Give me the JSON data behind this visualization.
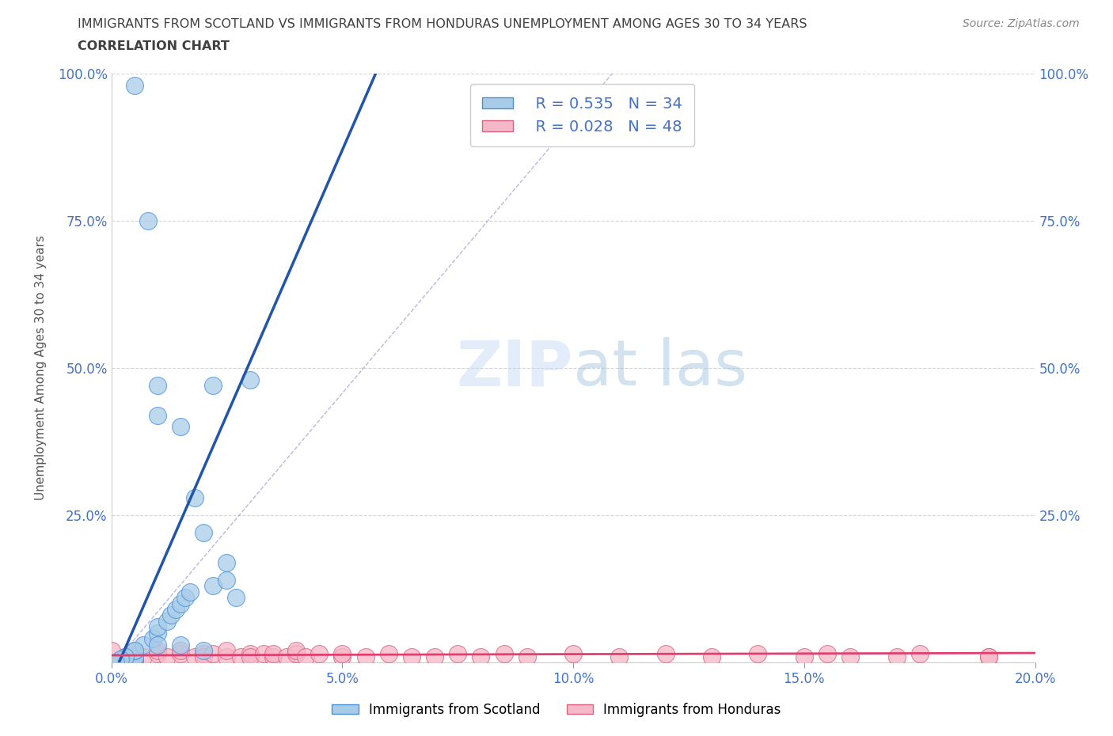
{
  "title_line1": "IMMIGRANTS FROM SCOTLAND VS IMMIGRANTS FROM HONDURAS UNEMPLOYMENT AMONG AGES 30 TO 34 YEARS",
  "title_line2": "CORRELATION CHART",
  "source": "Source: ZipAtlas.com",
  "ylabel": "Unemployment Among Ages 30 to 34 years",
  "scotland_R": 0.535,
  "scotland_N": 34,
  "honduras_R": 0.028,
  "honduras_N": 48,
  "scotland_color": "#a8cce8",
  "scotland_edge_color": "#4a90d9",
  "scotland_line_color": "#2255aa",
  "honduras_color": "#f5b8c8",
  "honduras_edge_color": "#e06080",
  "honduras_line_color": "#e04070",
  "diag_color": "#8888cc",
  "background_color": "#ffffff",
  "grid_color": "#cccccc",
  "title_color": "#404040",
  "axis_label_color": "#555555",
  "tick_label_color": "#4472c4",
  "watermark_color": "#c8dcf0",
  "xlim": [
    0.0,
    0.2
  ],
  "ylim": [
    0.0,
    1.0
  ],
  "scotland_x": [
    0.005,
    0.005,
    0.005,
    0.005,
    0.005,
    0.007,
    0.008,
    0.009,
    0.01,
    0.01,
    0.01,
    0.01,
    0.012,
    0.013,
    0.014,
    0.015,
    0.015,
    0.016,
    0.017,
    0.018,
    0.02,
    0.02,
    0.022,
    0.022,
    0.025,
    0.025,
    0.027,
    0.03,
    0.015,
    0.01,
    0.005,
    0.003,
    0.002,
    0.001
  ],
  "scotland_y": [
    0.98,
    0.0,
    0.005,
    0.01,
    0.02,
    0.03,
    0.75,
    0.04,
    0.05,
    0.42,
    0.47,
    0.06,
    0.07,
    0.08,
    0.09,
    0.1,
    0.4,
    0.11,
    0.12,
    0.28,
    0.02,
    0.22,
    0.13,
    0.47,
    0.14,
    0.17,
    0.11,
    0.48,
    0.03,
    0.03,
    0.02,
    0.01,
    0.005,
    0.0
  ],
  "honduras_x": [
    0.0,
    0.003,
    0.005,
    0.007,
    0.01,
    0.01,
    0.012,
    0.015,
    0.015,
    0.018,
    0.02,
    0.02,
    0.022,
    0.025,
    0.025,
    0.028,
    0.03,
    0.03,
    0.033,
    0.035,
    0.035,
    0.038,
    0.04,
    0.04,
    0.042,
    0.045,
    0.05,
    0.05,
    0.055,
    0.06,
    0.065,
    0.07,
    0.075,
    0.08,
    0.085,
    0.09,
    0.1,
    0.11,
    0.12,
    0.13,
    0.14,
    0.15,
    0.155,
    0.16,
    0.17,
    0.175,
    0.19,
    0.19
  ],
  "honduras_y": [
    0.02,
    0.01,
    0.015,
    0.01,
    0.015,
    0.02,
    0.01,
    0.015,
    0.02,
    0.01,
    0.015,
    0.01,
    0.015,
    0.01,
    0.02,
    0.01,
    0.015,
    0.01,
    0.015,
    0.01,
    0.015,
    0.01,
    0.015,
    0.02,
    0.01,
    0.015,
    0.01,
    0.015,
    0.01,
    0.015,
    0.01,
    0.01,
    0.015,
    0.01,
    0.015,
    0.01,
    0.015,
    0.01,
    0.015,
    0.01,
    0.015,
    0.01,
    0.015,
    0.01,
    0.01,
    0.015,
    0.01,
    0.01
  ]
}
